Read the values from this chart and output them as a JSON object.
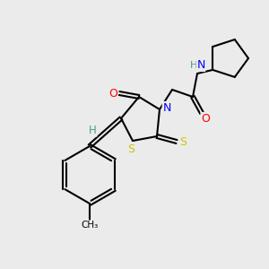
{
  "background_color": "#ebebeb",
  "atom_colors": {
    "C": "#000000",
    "H": "#4a9a8a",
    "N": "#0000ff",
    "O": "#ff0000",
    "S": "#c8c800"
  },
  "bond_color": "#000000",
  "figsize": [
    3.0,
    3.0
  ],
  "dpi": 100
}
